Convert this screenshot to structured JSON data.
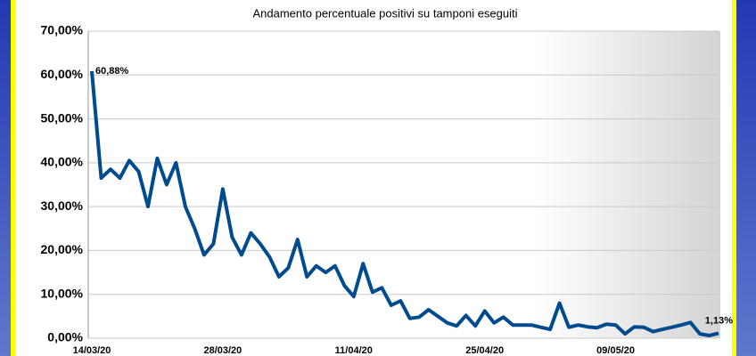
{
  "chart_data": {
    "type": "line",
    "title": "Andamento percentuale positivi su tamponi eseguiti",
    "categories": [
      "14/03/20",
      null,
      null,
      null,
      null,
      null,
      null,
      null,
      null,
      null,
      null,
      null,
      null,
      null,
      "28/03/20",
      null,
      null,
      null,
      null,
      null,
      null,
      null,
      null,
      null,
      null,
      null,
      null,
      null,
      "11/04/20",
      null,
      null,
      null,
      null,
      null,
      null,
      null,
      null,
      null,
      null,
      null,
      null,
      null,
      "25/04/20",
      null,
      null,
      null,
      null,
      null,
      null,
      null,
      null,
      null,
      null,
      null,
      null,
      null,
      "09/05/20",
      null,
      null,
      null,
      null,
      null,
      null,
      null,
      null,
      null,
      null,
      null
    ],
    "values": [
      60.88,
      36.5,
      38.5,
      36.5,
      40.5,
      38,
      30,
      41,
      35,
      40,
      30,
      25,
      19,
      21.5,
      34,
      23,
      19,
      24,
      21.5,
      18.5,
      14,
      16,
      22.5,
      14,
      16.5,
      15,
      16.5,
      12,
      9.5,
      17,
      10.5,
      11.5,
      7.5,
      8.5,
      4.5,
      4.8,
      6.5,
      5,
      3.5,
      2.8,
      5.2,
      2.8,
      6.2,
      3.5,
      4.8,
      3,
      3,
      3,
      2.5,
      2,
      8,
      2.5,
      3,
      2.6,
      2.4,
      3.2,
      3,
      1,
      2.6,
      2.5,
      1.5,
      2,
      2.5,
      3,
      3.6,
      1,
      0.6,
      1.13
    ],
    "value_labels": [
      "60,88%",
      null,
      null,
      null,
      null,
      null,
      null,
      null,
      null,
      null,
      null,
      null,
      null,
      null,
      null,
      null,
      null,
      null,
      null,
      null,
      null,
      null,
      null,
      null,
      null,
      null,
      null,
      null,
      null,
      null,
      null,
      null,
      null,
      null,
      null,
      null,
      null,
      null,
      null,
      null,
      null,
      null,
      null,
      null,
      null,
      null,
      null,
      null,
      null,
      null,
      null,
      null,
      null,
      null,
      null,
      null,
      null,
      null,
      null,
      null,
      null,
      null,
      null,
      null,
      null,
      null,
      null,
      "1,13%"
    ],
    "color": "#004a8f",
    "ylim": [
      0,
      70
    ],
    "yticks": [
      {
        "value": 0,
        "label": "0,00%"
      },
      {
        "value": 10,
        "label": "10,00%"
      },
      {
        "value": 20,
        "label": "20,00%"
      },
      {
        "value": 30,
        "label": "30,00%"
      },
      {
        "value": 40,
        "label": "40,00%"
      },
      {
        "value": 50,
        "label": "50,00%"
      },
      {
        "value": 60,
        "label": "60,00%"
      },
      {
        "value": 70,
        "label": "70,00%"
      }
    ],
    "grid": true
  }
}
